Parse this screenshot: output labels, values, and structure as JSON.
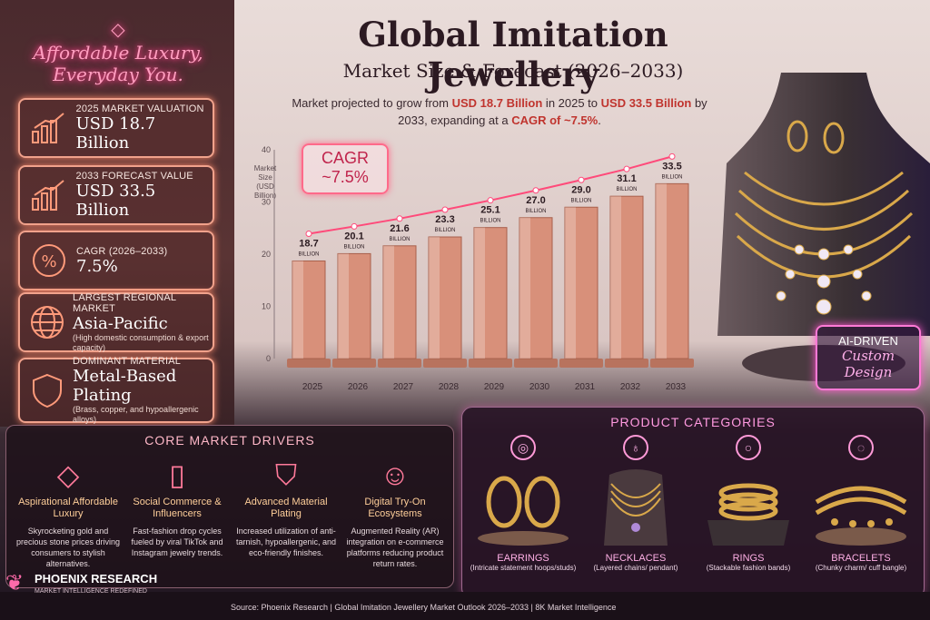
{
  "neon_sign": {
    "line1": "Affordable Luxury,",
    "line2": "Everyday You.",
    "icon": "diamond-icon"
  },
  "title": "Global Imitation Jewellery",
  "subtitle": "Market Size & Forecast (2026–2033)",
  "description": {
    "p1": "Market projected to grow from ",
    "v1": "USD 18.7 Billion",
    "p2": " in 2025 to ",
    "v2": "USD 33.5 Billion",
    "p3": " by 2033, expanding at a ",
    "v3": "CAGR of ~7.5%",
    "p4": "."
  },
  "stats": [
    {
      "label": "2025 MARKET VALUATION",
      "value": "USD 18.7 Billion",
      "sub": "",
      "icon": "bar-chart-icon"
    },
    {
      "label": "2033 FORECAST VALUE",
      "value": "USD 33.5 Billion",
      "sub": "",
      "icon": "bar-chart-icon"
    },
    {
      "label": "CAGR (2026–2033)",
      "value": "7.5%",
      "sub": "",
      "icon": "percent-icon"
    },
    {
      "label": "LARGEST REGIONAL MARKET",
      "value": "Asia-Pacific",
      "sub": "(High domestic consumption & export capacity)",
      "icon": "globe-icon"
    },
    {
      "label": "DOMINANT MATERIAL",
      "value": "Metal-Based Plating",
      "sub": "(Brass, copper, and hypoallergenic alloys)",
      "icon": "shield-icon"
    }
  ],
  "cagr_badge": {
    "label": "CAGR",
    "value": "~7.5%"
  },
  "chart_data": {
    "type": "bar",
    "categories": [
      "2025",
      "2026",
      "2027",
      "2028",
      "2029",
      "2030",
      "2031",
      "2032",
      "2033"
    ],
    "values": [
      18.7,
      20.1,
      21.6,
      23.3,
      25.1,
      27.0,
      29.0,
      31.1,
      33.5
    ],
    "value_labels": [
      "18.7",
      "20.1",
      "21.6",
      "23.3",
      "25.1",
      "27.0",
      "29.0",
      "31.1",
      "33.5"
    ],
    "value_unit": "BILLION",
    "ylabel": "Market Size (USD Billion)",
    "yticks": [
      0,
      10,
      20,
      30,
      40
    ],
    "ylim": [
      0,
      40
    ],
    "trend_line": true,
    "bar_color": "#d8907a"
  },
  "ai_badge": {
    "line1": "AI-DRIVEN",
    "line2": "Custom",
    "line3": "Design"
  },
  "drivers": {
    "title": "CORE MARKET DRIVERS",
    "items": [
      {
        "heading": "Aspirational Affordable Luxury",
        "desc": "Skyrocketing gold and precious stone prices driving consumers to stylish alternatives.",
        "icon": "diamond-icon"
      },
      {
        "heading": "Social Commerce & Influencers",
        "desc": "Fast-fashion drop cycles fueled by viral TikTok and Instagram jewelry trends.",
        "icon": "smartphone-icon"
      },
      {
        "heading": "Advanced Material Plating",
        "desc": "Increased utilization of anti-tarnish, hypoallergenic, and eco-friendly finishes.",
        "icon": "shield-sparkle-icon"
      },
      {
        "heading": "Digital Try-On Ecosystems",
        "desc": "Augmented Reality (AR) integration on e-commerce platforms reducing product return rates.",
        "icon": "face-scan-icon"
      }
    ]
  },
  "categories": {
    "title": "PRODUCT CATEGORIES",
    "items": [
      {
        "name": "EARRINGS",
        "desc": "(Intricate statement hoops/studs)",
        "icon": "earring-icon"
      },
      {
        "name": "NECKLACES",
        "desc": "(Layered chains/ pendant)",
        "icon": "necklace-icon"
      },
      {
        "name": "RINGS",
        "desc": "(Stackable fashion bands)",
        "icon": "ring-icon"
      },
      {
        "name": "BRACELETS",
        "desc": "(Chunky charm/ cuff bangle)",
        "icon": "bracelet-icon"
      }
    ]
  },
  "footer": {
    "brand": "PHOENIX RESEARCH",
    "tagline": "MARKET INTELLIGENCE REDEFINED",
    "source": "Source: Phoenix Research   |   Global Imitation Jewellery Market Outlook 2026–2033   |   8K Market Intelligence"
  }
}
